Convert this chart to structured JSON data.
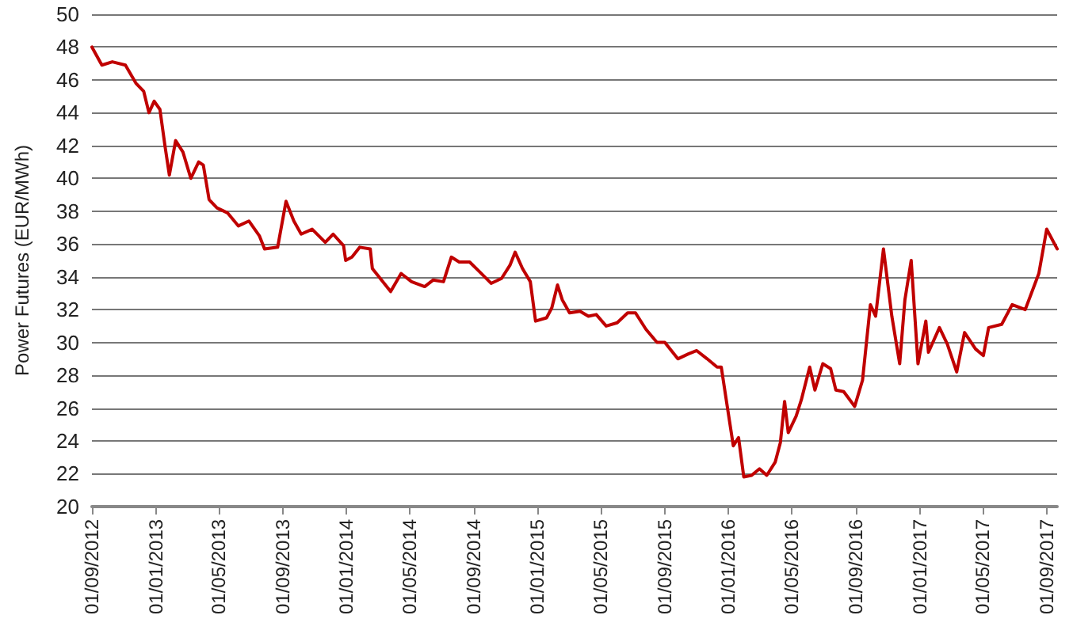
{
  "chart_data": {
    "type": "line",
    "ylabel": "Power Futures (EUR/MWh)",
    "x": [
      "2012-09-01",
      "2012-09-20",
      "2012-10-10",
      "2012-11-04",
      "2012-11-24",
      "2012-12-09",
      "2012-12-19",
      "2012-12-29",
      "2013-01-09",
      "2013-01-19",
      "2013-01-27",
      "2013-02-08",
      "2013-02-22",
      "2013-03-09",
      "2013-03-24",
      "2013-04-02",
      "2013-04-13",
      "2013-04-28",
      "2013-05-18",
      "2013-06-08",
      "2013-06-28",
      "2013-07-18",
      "2013-07-28",
      "2013-08-22",
      "2013-09-07",
      "2013-09-22",
      "2013-10-06",
      "2013-10-27",
      "2013-11-21",
      "2013-12-06",
      "2013-12-26",
      "2013-12-30",
      "2014-01-11",
      "2014-01-26",
      "2014-02-15",
      "2014-02-19",
      "2014-03-26",
      "2014-04-15",
      "2014-05-05",
      "2014-05-30",
      "2014-06-15",
      "2014-07-05",
      "2014-07-20",
      "2014-08-04",
      "2014-08-24",
      "2014-09-09",
      "2014-10-04",
      "2014-10-24",
      "2014-11-09",
      "2014-11-19",
      "2014-12-03",
      "2014-12-18",
      "2014-12-28",
      "2015-01-18",
      "2015-01-28",
      "2015-02-08",
      "2015-02-17",
      "2015-03-03",
      "2015-03-23",
      "2015-04-08",
      "2015-04-23",
      "2015-05-12",
      "2015-06-02",
      "2015-06-22",
      "2015-07-07",
      "2015-07-27",
      "2015-08-17",
      "2015-09-01",
      "2015-09-26",
      "2015-10-16",
      "2015-11-01",
      "2015-11-21",
      "2015-12-10",
      "2015-12-18",
      "2015-12-27",
      "2016-01-10",
      "2016-01-20",
      "2016-01-30",
      "2016-02-14",
      "2016-02-29",
      "2016-03-14",
      "2016-03-30",
      "2016-04-09",
      "2016-04-17",
      "2016-04-24",
      "2016-05-09",
      "2016-05-19",
      "2016-06-04",
      "2016-06-14",
      "2016-06-29",
      "2016-07-14",
      "2016-07-24",
      "2016-08-08",
      "2016-08-29",
      "2016-09-13",
      "2016-09-28",
      "2016-10-08",
      "2016-10-23",
      "2016-11-08",
      "2016-11-23",
      "2016-12-03",
      "2016-12-15",
      "2016-12-28",
      "2017-01-12",
      "2017-01-17",
      "2017-02-07",
      "2017-02-22",
      "2017-03-12",
      "2017-03-27",
      "2017-04-17",
      "2017-05-02",
      "2017-05-12",
      "2017-06-06",
      "2017-06-26",
      "2017-07-21",
      "2017-08-16",
      "2017-08-31",
      "2017-09-20"
    ],
    "series": [
      {
        "color": "#c00000",
        "values": [
          48.0,
          46.9,
          47.1,
          46.9,
          45.8,
          45.3,
          44.0,
          44.7,
          44.2,
          41.9,
          40.2,
          42.3,
          41.6,
          40.0,
          41.0,
          40.8,
          38.7,
          38.2,
          37.9,
          37.1,
          37.4,
          36.5,
          35.7,
          35.8,
          38.6,
          37.4,
          36.6,
          36.9,
          36.1,
          36.6,
          35.9,
          35.0,
          35.2,
          35.8,
          35.7,
          34.5,
          33.1,
          34.2,
          33.7,
          33.4,
          33.8,
          33.7,
          35.2,
          34.9,
          34.9,
          34.4,
          33.6,
          33.9,
          34.7,
          35.5,
          34.5,
          33.7,
          31.3,
          31.5,
          32.1,
          33.5,
          32.6,
          31.8,
          31.9,
          31.6,
          31.7,
          31.0,
          31.2,
          31.8,
          31.8,
          30.8,
          30.0,
          30.0,
          29.0,
          29.3,
          29.5,
          29.0,
          28.5,
          28.5,
          26.6,
          23.7,
          24.2,
          21.8,
          21.9,
          22.3,
          21.9,
          22.7,
          23.9,
          26.4,
          24.5,
          25.5,
          26.5,
          28.5,
          27.1,
          28.7,
          28.4,
          27.1,
          27.0,
          26.1,
          27.7,
          32.3,
          31.6,
          35.7,
          31.6,
          28.7,
          32.6,
          35.0,
          28.7,
          31.3,
          29.4,
          30.9,
          29.9,
          28.2,
          30.6,
          29.6,
          29.2,
          30.9,
          31.1,
          32.3,
          32.0,
          34.2,
          36.9,
          35.7
        ]
      }
    ],
    "xlim": [
      "2012-09-01",
      "2017-09-20"
    ],
    "xticks": [
      {
        "value": "2012-09-01",
        "label": "01/09/2012"
      },
      {
        "value": "2013-01-01",
        "label": "01/01/2013"
      },
      {
        "value": "2013-05-01",
        "label": "01/05/2013"
      },
      {
        "value": "2013-09-01",
        "label": "01/09/2013"
      },
      {
        "value": "2014-01-01",
        "label": "01/01/2014"
      },
      {
        "value": "2014-05-01",
        "label": "01/05/2014"
      },
      {
        "value": "2014-09-01",
        "label": "01/09/2014"
      },
      {
        "value": "2015-01-01",
        "label": "01/01/2015"
      },
      {
        "value": "2015-05-01",
        "label": "01/05/2015"
      },
      {
        "value": "2015-09-01",
        "label": "01/09/2015"
      },
      {
        "value": "2016-01-01",
        "label": "01/01/2016"
      },
      {
        "value": "2016-05-01",
        "label": "01/05/2016"
      },
      {
        "value": "2016-09-01",
        "label": "01/09/2016"
      },
      {
        "value": "2017-01-01",
        "label": "01/01/2017"
      },
      {
        "value": "2017-05-01",
        "label": "01/05/2017"
      },
      {
        "value": "2017-09-01",
        "label": "01/09/2017"
      }
    ],
    "ylim": [
      20,
      50
    ],
    "yticks": [
      20,
      22,
      24,
      26,
      28,
      30,
      32,
      34,
      36,
      38,
      40,
      42,
      44,
      46,
      48,
      50
    ],
    "grid": "y",
    "marker": "none",
    "line_style": "solid"
  }
}
